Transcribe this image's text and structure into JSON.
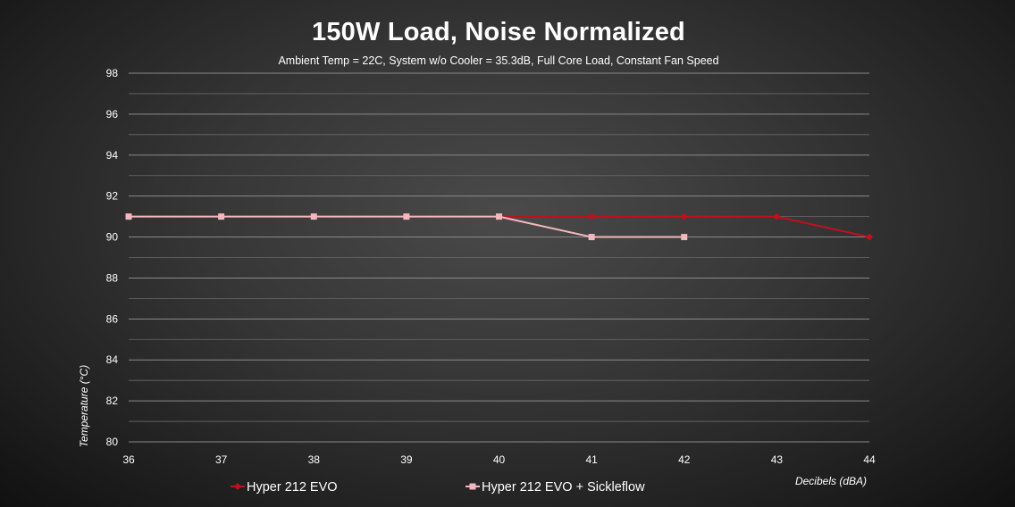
{
  "chart_data": {
    "type": "line",
    "title": "150W Load, Noise Normalized",
    "subtitle": "Ambient Temp = 22C, System w/o Cooler = 35.3dB, Full Core Load, Constant Fan Speed",
    "xlabel": "Decibels (dBA)",
    "ylabel": "Temperature (°C)",
    "xlim": [
      36,
      44
    ],
    "ylim": [
      80,
      98
    ],
    "x_ticks": [
      36,
      37,
      38,
      39,
      40,
      41,
      42,
      43,
      44
    ],
    "y_ticks": [
      80,
      82,
      84,
      86,
      88,
      90,
      92,
      94,
      96,
      98
    ],
    "y_minor_step": 1,
    "grid": true,
    "legend_position": "bottom",
    "series": [
      {
        "name": "Hyper 212 EVO",
        "color": "#c0101e",
        "marker": "diamond",
        "x": [
          36,
          37,
          38,
          39,
          40,
          41,
          42,
          43,
          44
        ],
        "y": [
          91,
          91,
          91,
          91,
          91,
          91,
          91,
          91,
          90
        ]
      },
      {
        "name": "Hyper 212 EVO + Sickleflow",
        "color": "#f2b8be",
        "marker": "square",
        "x": [
          36,
          37,
          38,
          39,
          40,
          41,
          42
        ],
        "y": [
          91,
          91,
          91,
          91,
          91,
          90,
          90
        ]
      }
    ]
  }
}
